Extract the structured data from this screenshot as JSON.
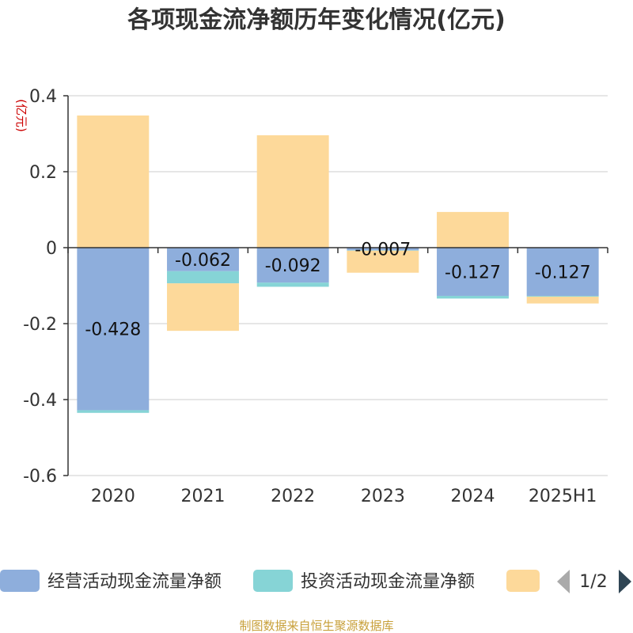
{
  "chart_data": {
    "type": "bar",
    "stacked": true,
    "title": "各项现金流净额历年变化情况(亿元)",
    "unit_label": "(亿元)",
    "categories": [
      "2020",
      "2021",
      "2022",
      "2023",
      "2024",
      "2025H1"
    ],
    "ylim": [
      -0.6,
      0.4
    ],
    "yticks": [
      0.4,
      0.2,
      0,
      -0.2,
      -0.4,
      -0.6
    ],
    "ytick_labels": [
      "0.4",
      "0.2",
      "0",
      "-0.2",
      "-0.4",
      "-0.6"
    ],
    "grid": true,
    "series": [
      {
        "name": "经营活动现金流量净额",
        "color": "#8eaedc",
        "values": [
          -0.428,
          -0.062,
          -0.092,
          -0.007,
          -0.127,
          -0.127
        ],
        "labels": [
          "-0.428",
          "-0.062",
          "-0.092",
          "-0.007",
          "-0.127",
          "-0.127"
        ]
      },
      {
        "name": "投资活动现金流量净额",
        "color": "#86d4d6",
        "values": [
          -0.007,
          -0.032,
          -0.011,
          -0.001,
          -0.007,
          -0.002
        ]
      },
      {
        "name": "",
        "color": "#fdd99a",
        "values": [
          0.348,
          -0.125,
          0.296,
          -0.058,
          0.094,
          -0.018
        ]
      }
    ],
    "legend": {
      "position": "bottom",
      "page": "1/2"
    }
  },
  "source_note": "制图数据来自恒生聚源数据库"
}
